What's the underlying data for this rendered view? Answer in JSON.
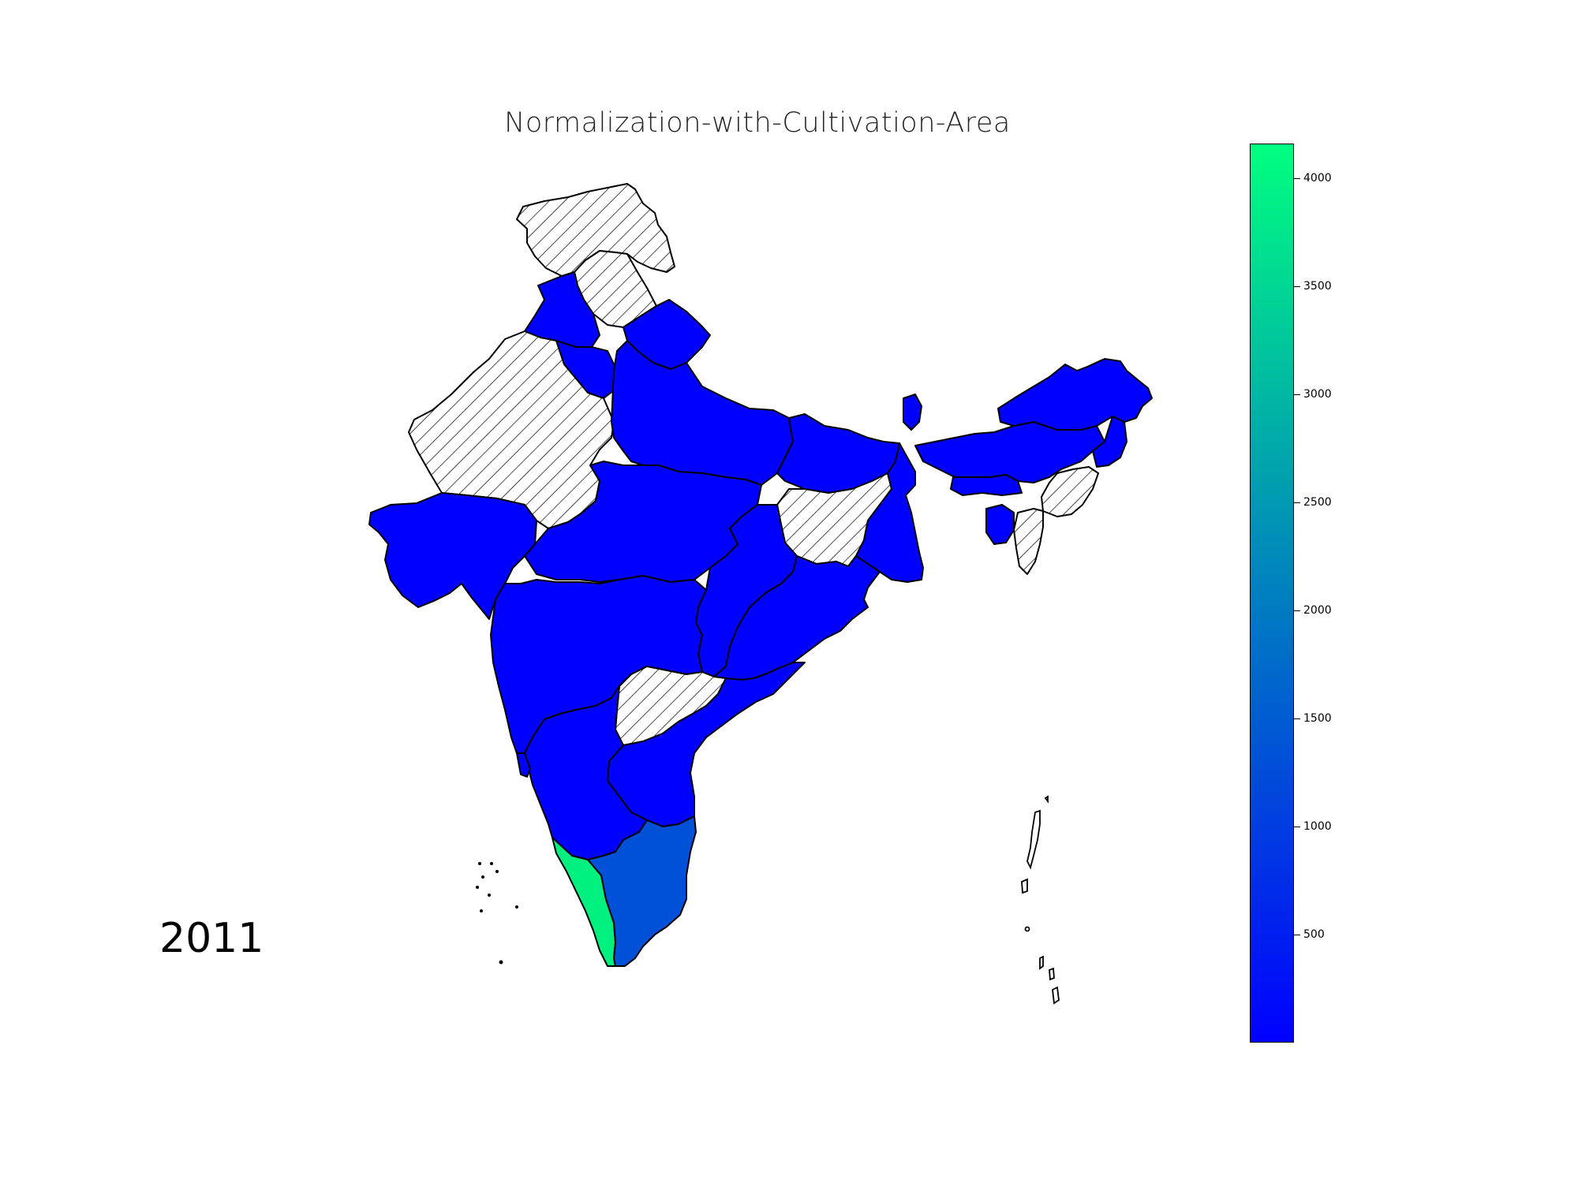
{
  "title": "Normalization-with-Cultivation-Area",
  "year_label": "2011",
  "colormap": {
    "name": "winter",
    "low_color": "#0000ff",
    "high_color": "#00ff80",
    "vmin": 0,
    "vmax": 4160
  },
  "colorbar_ticks": [
    {
      "label": "500",
      "value": 500
    },
    {
      "label": "1000",
      "value": 1000
    },
    {
      "label": "1500",
      "value": 1500
    },
    {
      "label": "2000",
      "value": 2000
    },
    {
      "label": "2500",
      "value": 2500
    },
    {
      "label": "3000",
      "value": 3000
    },
    {
      "label": "3500",
      "value": 3500
    },
    {
      "label": "4000",
      "value": 4000
    }
  ],
  "missing_data_style": "hatched",
  "region_colors": {
    "default": "#0000ff",
    "kerala": "#00f080",
    "tamil-nadu": "#0050d8",
    "missing": "hatched"
  }
}
